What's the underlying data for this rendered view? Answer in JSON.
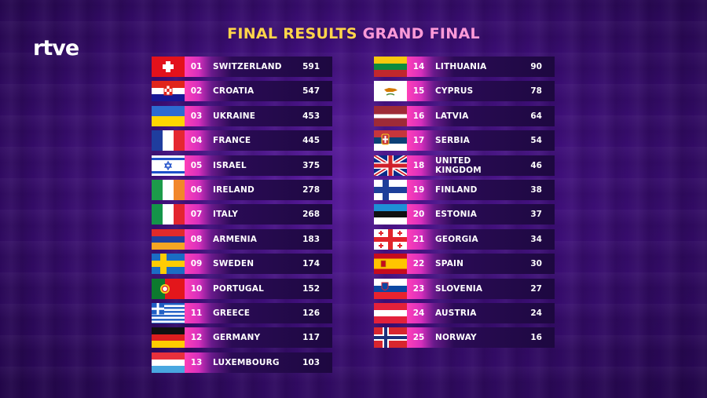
{
  "broadcaster_logo": "rtve",
  "title": {
    "part1": "FINAL",
    "part2": "RESULTS",
    "part3": "GRAND FINAL"
  },
  "results": [
    {
      "rank": "01",
      "country": "SWITZERLAND",
      "points": "591",
      "flag": "switzerland-flag"
    },
    {
      "rank": "02",
      "country": "CROATIA",
      "points": "547",
      "flag": "croatia-flag"
    },
    {
      "rank": "03",
      "country": "UKRAINE",
      "points": "453",
      "flag": "ukraine-flag"
    },
    {
      "rank": "04",
      "country": "FRANCE",
      "points": "445",
      "flag": "france-flag"
    },
    {
      "rank": "05",
      "country": "ISRAEL",
      "points": "375",
      "flag": "israel-flag"
    },
    {
      "rank": "06",
      "country": "IRELAND",
      "points": "278",
      "flag": "ireland-flag"
    },
    {
      "rank": "07",
      "country": "ITALY",
      "points": "268",
      "flag": "italy-flag"
    },
    {
      "rank": "08",
      "country": "ARMENIA",
      "points": "183",
      "flag": "armenia-flag"
    },
    {
      "rank": "09",
      "country": "SWEDEN",
      "points": "174",
      "flag": "sweden-flag"
    },
    {
      "rank": "10",
      "country": "PORTUGAL",
      "points": "152",
      "flag": "portugal-flag"
    },
    {
      "rank": "11",
      "country": "GREECE",
      "points": "126",
      "flag": "greece-flag"
    },
    {
      "rank": "12",
      "country": "GERMANY",
      "points": "117",
      "flag": "germany-flag"
    },
    {
      "rank": "13",
      "country": "LUXEMBOURG",
      "points": "103",
      "flag": "luxembourg-flag"
    },
    {
      "rank": "14",
      "country": "LITHUANIA",
      "points": "90",
      "flag": "lithuania-flag"
    },
    {
      "rank": "15",
      "country": "CYPRUS",
      "points": "78",
      "flag": "cyprus-flag"
    },
    {
      "rank": "16",
      "country": "LATVIA",
      "points": "64",
      "flag": "latvia-flag"
    },
    {
      "rank": "17",
      "country": "SERBIA",
      "points": "54",
      "flag": "serbia-flag"
    },
    {
      "rank": "18",
      "country": "UNITED KINGDOM",
      "points": "46",
      "flag": "united-kingdom-flag"
    },
    {
      "rank": "19",
      "country": "FINLAND",
      "points": "38",
      "flag": "finland-flag"
    },
    {
      "rank": "20",
      "country": "ESTONIA",
      "points": "37",
      "flag": "estonia-flag"
    },
    {
      "rank": "21",
      "country": "GEORGIA",
      "points": "34",
      "flag": "georgia-flag"
    },
    {
      "rank": "22",
      "country": "SPAIN",
      "points": "30",
      "flag": "spain-flag"
    },
    {
      "rank": "23",
      "country": "SLOVENIA",
      "points": "27",
      "flag": "slovenia-flag"
    },
    {
      "rank": "24",
      "country": "AUSTRIA",
      "points": "24",
      "flag": "austria-flag"
    },
    {
      "rank": "25",
      "country": "NORWAY",
      "points": "16",
      "flag": "norway-flag"
    }
  ],
  "colors": {
    "title_primary": "#ffd54a",
    "title_accent": "#ff9ad8",
    "bar_accent": "#ff3fb8",
    "background": "#3d0e78"
  }
}
